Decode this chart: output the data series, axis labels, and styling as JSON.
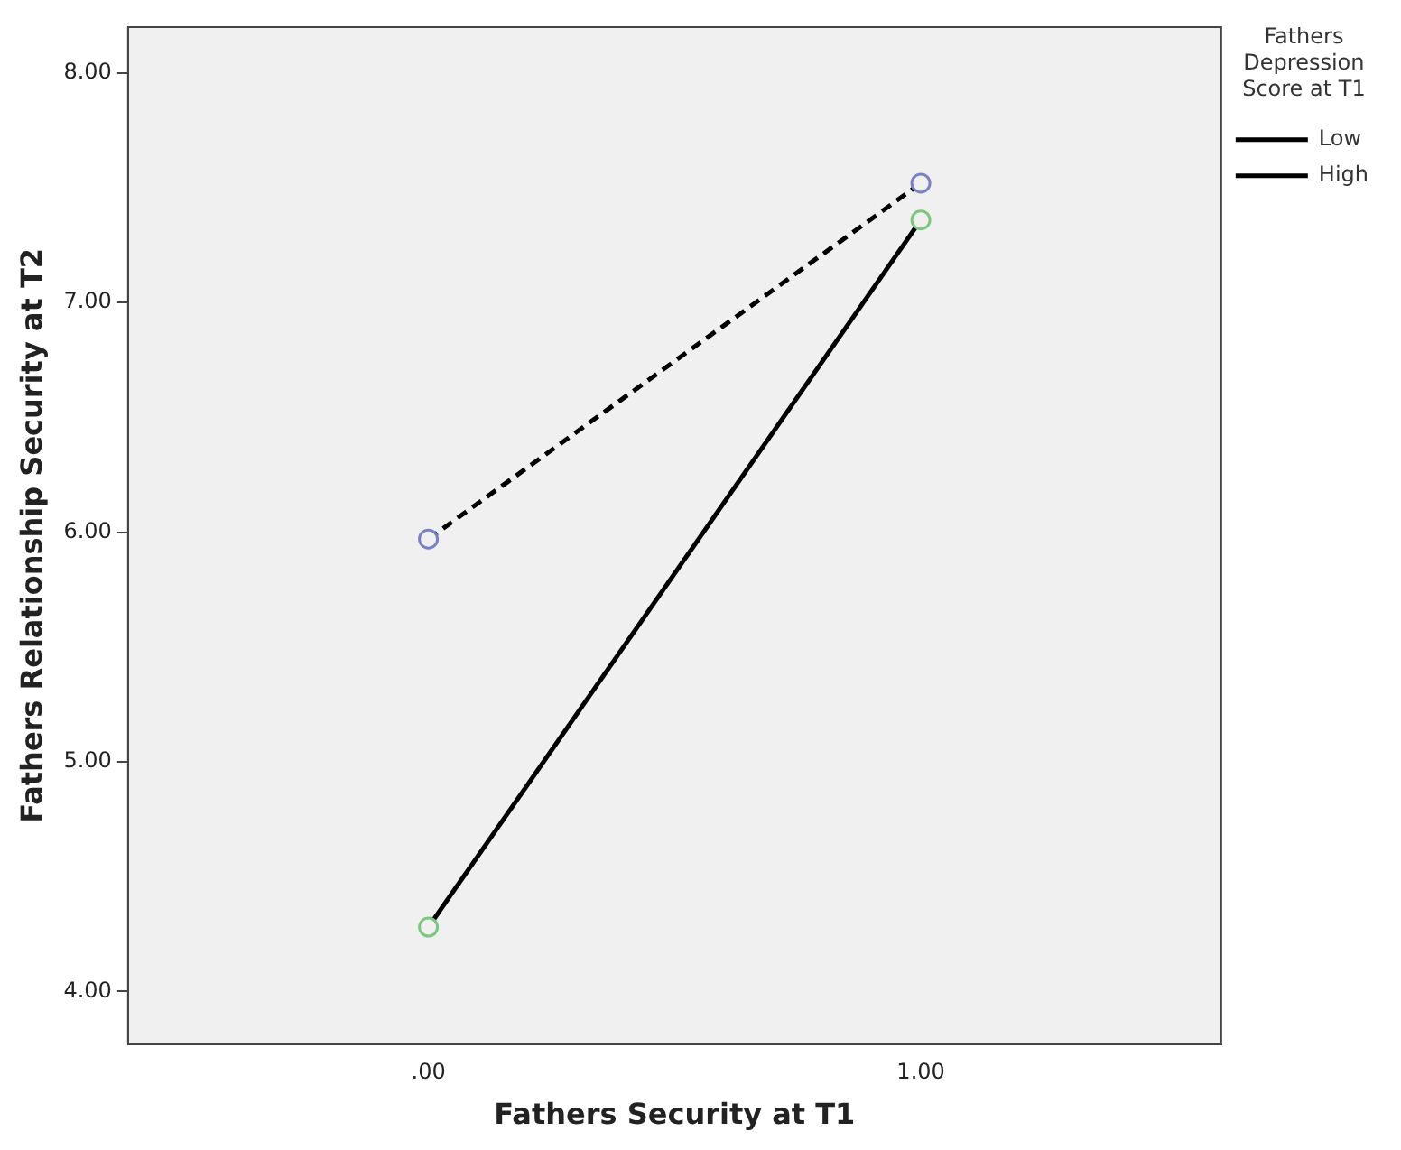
{
  "chart_data": {
    "type": "line",
    "xlabel": "Fathers Security at T1",
    "ylabel": "Fathers Relationship Security at T2",
    "legend_title": "Fathers Depression Score at T1",
    "x": [
      0,
      1
    ],
    "series": [
      {
        "name": "Low",
        "color": "#000000",
        "colors": [
          "#7a80c8",
          "#7a80c8"
        ],
        "line_style": "dashed",
        "values": [
          5.97,
          7.52
        ]
      },
      {
        "name": "High",
        "color": "#000000",
        "colors": [
          "#7cc77c",
          "#7cc77c"
        ],
        "line_style": "solid",
        "values": [
          4.28,
          7.36
        ]
      }
    ],
    "xlim": [
      -0.61,
      1.61
    ],
    "xticks": [
      {
        "value": 0,
        "label": ".00"
      },
      {
        "value": 1,
        "label": "1.00"
      }
    ],
    "ylim": [
      3.77,
      8.2
    ],
    "yticks": [
      {
        "value": 4,
        "label": "4.00"
      },
      {
        "value": 5,
        "label": "5.00"
      },
      {
        "value": 6,
        "label": "6.00"
      },
      {
        "value": 7,
        "label": "7.00"
      },
      {
        "value": 8,
        "label": "8.00"
      }
    ],
    "grid": false,
    "legend": "right",
    "marker": "circle"
  }
}
